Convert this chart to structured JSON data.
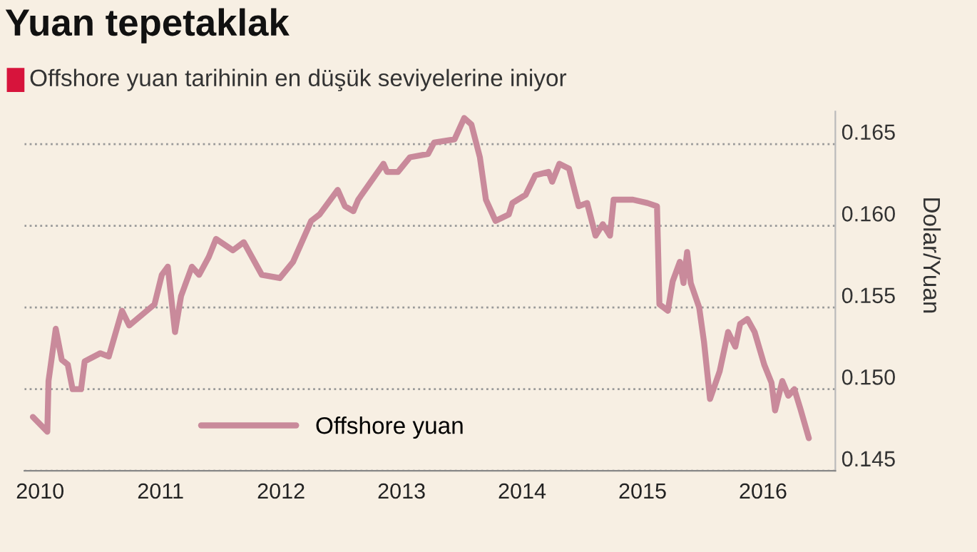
{
  "chart_data": {
    "type": "line",
    "title": "Yuan tepetaklak",
    "subtitle": "Offshore yuan tarihinin en düşük seviyelerine iniyor",
    "ylabel": "Dolar/Yuan",
    "series": [
      {
        "name": "Offshore yuan",
        "color": "#c98a9b",
        "x": [
          2009.94,
          2010.06,
          2010.07,
          2010.13,
          2010.18,
          2010.23,
          2010.27,
          2010.34,
          2010.37,
          2010.5,
          2010.57,
          2010.68,
          2010.74,
          2010.95,
          2011.01,
          2011.06,
          2011.12,
          2011.17,
          2011.26,
          2011.32,
          2011.4,
          2011.46,
          2011.6,
          2011.69,
          2011.84,
          2011.99,
          2012.1,
          2012.25,
          2012.32,
          2012.47,
          2012.53,
          2012.6,
          2012.64,
          2012.85,
          2012.88,
          2012.97,
          2013.07,
          2013.22,
          2013.27,
          2013.44,
          2013.52,
          2013.58,
          2013.65,
          2013.7,
          2013.78,
          2013.89,
          2013.92,
          2014.03,
          2014.11,
          2014.22,
          2014.25,
          2014.31,
          2014.39,
          2014.47,
          2014.54,
          2014.61,
          2014.67,
          2014.73,
          2014.76,
          2014.92,
          2015.04,
          2015.12,
          2015.14,
          2015.21,
          2015.25,
          2015.31,
          2015.34,
          2015.37,
          2015.4,
          2015.47,
          2015.51,
          2015.56,
          2015.64,
          2015.71,
          2015.77,
          2015.81,
          2015.87,
          2015.93,
          2016.01,
          2016.07,
          2016.1,
          2016.16,
          2016.21,
          2016.26,
          2016.31,
          2016.38
        ],
        "values": [
          0.1483,
          0.1474,
          0.1505,
          0.1537,
          0.1518,
          0.1515,
          0.15,
          0.15,
          0.1517,
          0.1522,
          0.152,
          0.1548,
          0.1539,
          0.1552,
          0.157,
          0.1575,
          0.1535,
          0.1557,
          0.1575,
          0.157,
          0.1581,
          0.1592,
          0.1585,
          0.159,
          0.157,
          0.1568,
          0.1578,
          0.1603,
          0.1607,
          0.1622,
          0.1612,
          0.1609,
          0.1616,
          0.1638,
          0.1633,
          0.1633,
          0.1642,
          0.1644,
          0.1651,
          0.1653,
          0.1666,
          0.1662,
          0.1642,
          0.1616,
          0.1603,
          0.1607,
          0.1614,
          0.1619,
          0.1631,
          0.1633,
          0.1627,
          0.1638,
          0.1635,
          0.1612,
          0.1614,
          0.1594,
          0.1601,
          0.1594,
          0.1616,
          0.1616,
          0.1614,
          0.1612,
          0.1552,
          0.1548,
          0.1566,
          0.1578,
          0.1565,
          0.1584,
          0.1565,
          0.155,
          0.1529,
          0.1494,
          0.1511,
          0.1535,
          0.1526,
          0.154,
          0.1543,
          0.1535,
          0.1515,
          0.1504,
          0.1487,
          0.1505,
          0.1496,
          0.15,
          0.1488,
          0.147
        ]
      }
    ],
    "xlim": [
      2009.87,
      2016.6
    ],
    "xticks": [
      2010,
      2011,
      2012,
      2013,
      2014,
      2015,
      2016
    ],
    "ylim": [
      0.145,
      0.167
    ],
    "yticks": [
      0.145,
      {
        "value": 0.15,
        "label": "0.150"
      },
      0.155,
      {
        "value": 0.16,
        "label": "0.160"
      },
      0.165
    ],
    "grid": "y",
    "legend": "bottom",
    "marker": "none",
    "line_style": "solid"
  }
}
